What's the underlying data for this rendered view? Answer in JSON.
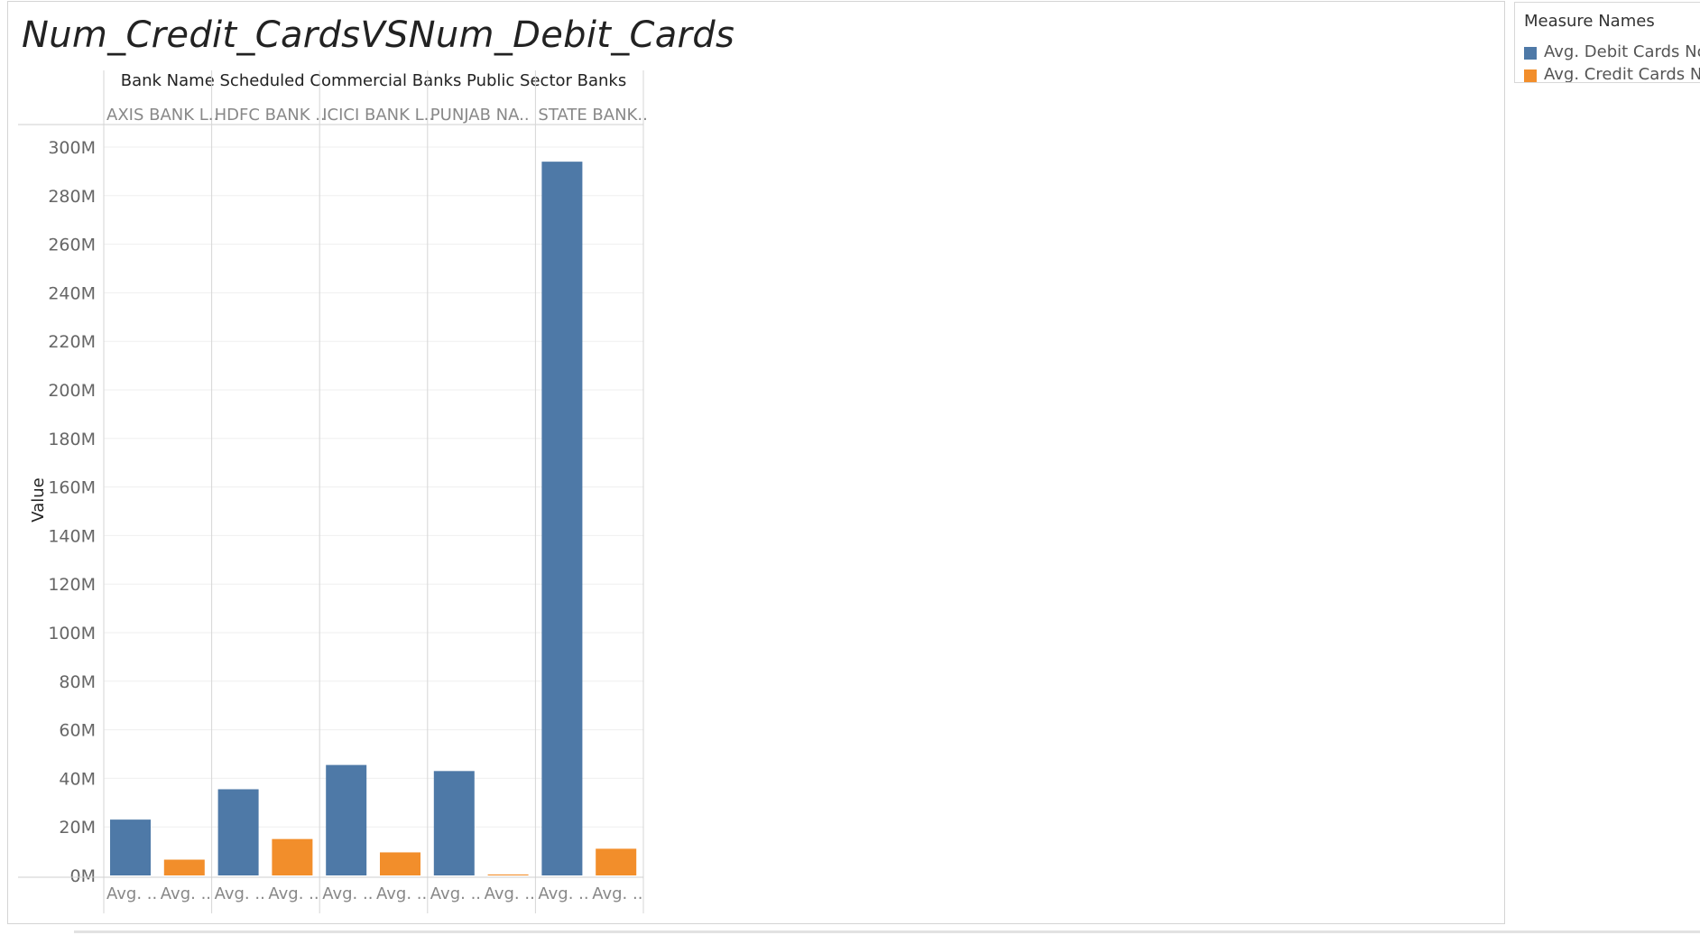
{
  "chart_data": {
    "type": "bar",
    "title": "Num_Credit_CardsVSNum_Debit_Cards",
    "header": "Bank Name Scheduled Commercial Banks Public Sector Banks",
    "ylabel": "Value",
    "ylim": [
      0,
      300000000
    ],
    "yticks": [
      "0M",
      "20M",
      "40M",
      "60M",
      "80M",
      "100M",
      "120M",
      "140M",
      "160M",
      "180M",
      "200M",
      "220M",
      "240M",
      "260M",
      "280M",
      "300M"
    ],
    "categories": [
      "AXIS BANK L..",
      "HDFC BANK ..",
      "ICICI BANK L..",
      "PUNJAB NA..",
      "STATE BANK.."
    ],
    "bar_labels": [
      "Avg. ..",
      "Avg. .."
    ],
    "series": [
      {
        "name": "Avg. Debit Cards No.",
        "color": "#4e79a7",
        "values": [
          23000000,
          35500000,
          45500000,
          43000000,
          294000000
        ]
      },
      {
        "name": "Avg. Credit Cards No.",
        "color": "#f28e2b",
        "values": [
          6500000,
          15000000,
          9500000,
          400000,
          11000000
        ]
      }
    ],
    "grid": true,
    "legend_position": "top-right"
  },
  "legend": {
    "title": "Measure Names",
    "items": [
      {
        "label": "Avg. Debit Cards No.",
        "color": "#4e79a7"
      },
      {
        "label": "Avg. Credit Cards No.",
        "color": "#f28e2b"
      }
    ]
  }
}
